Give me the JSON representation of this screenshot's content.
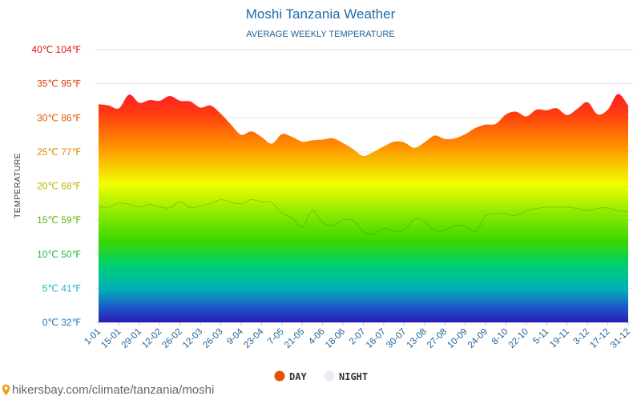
{
  "chart_data": {
    "type": "area",
    "title": "Moshi Tanzania Weather",
    "subtitle": "AVERAGE WEEKLY TEMPERATURE",
    "ylabel": "TEMPERATURE",
    "ylim": [
      0,
      40
    ],
    "y_ticks": [
      {
        "value": 0,
        "label": "0℃ 32℉",
        "color": "#2f6fc8"
      },
      {
        "value": 5,
        "label": "5℃ 41℉",
        "color": "#1fb5c8"
      },
      {
        "value": 10,
        "label": "10℃ 50℉",
        "color": "#28b340"
      },
      {
        "value": 15,
        "label": "15℃ 59℉",
        "color": "#5cb51a"
      },
      {
        "value": 20,
        "label": "20℃ 68℉",
        "color": "#b7b400"
      },
      {
        "value": 25,
        "label": "25℃ 77℉",
        "color": "#e08a00"
      },
      {
        "value": 30,
        "label": "30℃ 86℉",
        "color": "#e25a00"
      },
      {
        "value": 35,
        "label": "35℃ 95℉",
        "color": "#e03a10"
      },
      {
        "value": 40,
        "label": "40℃ 104℉",
        "color": "#e01010"
      }
    ],
    "x_tick_labels": [
      "1-01",
      "15-01",
      "29-01",
      "12-02",
      "26-02",
      "12-03",
      "26-03",
      "9-04",
      "23-04",
      "7-05",
      "21-05",
      "4-06",
      "18-06",
      "2-07",
      "16-07",
      "30-07",
      "13-08",
      "27-08",
      "10-09",
      "24-09",
      "8-10",
      "22-10",
      "5-11",
      "19-11",
      "3-12",
      "17-12",
      "31-12"
    ],
    "series": [
      {
        "name": "DAY",
        "values": [
          32,
          31.8,
          31.4,
          33.4,
          32.2,
          32.6,
          32.5,
          33.2,
          32.5,
          32.4,
          31.5,
          31.8,
          30.6,
          29,
          27.5,
          28,
          27.2,
          26.2,
          27.6,
          27.2,
          26.5,
          26.7,
          26.8,
          27,
          26.3,
          25.4,
          24.4,
          25,
          25.8,
          26.5,
          26.4,
          25.6,
          26.4,
          27.4,
          26.9,
          27,
          27.6,
          28.5,
          29,
          29.1,
          30.5,
          30.9,
          30.2,
          31.2,
          31.1,
          31.4,
          30.4,
          31.3,
          32.3,
          30.5,
          31.2,
          33.5,
          31.8
        ]
      },
      {
        "name": "NIGHT",
        "values": [
          17,
          16.9,
          17.5,
          17.3,
          16.9,
          17.3,
          16.9,
          16.8,
          17.7,
          16.8,
          17.1,
          17.4,
          18,
          17.6,
          17.4,
          18,
          17.7,
          17.6,
          16,
          15.3,
          14,
          16.4,
          14.6,
          14.2,
          15,
          14.9,
          13.3,
          13,
          13.8,
          13.4,
          13.6,
          15.1,
          14.8,
          13.5,
          13.5,
          14.2,
          14.1,
          13.3,
          15.6,
          16,
          15.9,
          15.7,
          16.4,
          16.7,
          16.9,
          16.9,
          16.9,
          16.7,
          16.4,
          16.7,
          16.8,
          16.4,
          16.2
        ]
      }
    ],
    "legend": [
      {
        "label": "DAY",
        "color": "#e8500a"
      },
      {
        "label": "NIGHT",
        "color": "#e6ecf2"
      }
    ]
  },
  "footer": {
    "source_text": "hikersbay.com/climate/tanzania/moshi",
    "pin_color": "#f0a020"
  }
}
